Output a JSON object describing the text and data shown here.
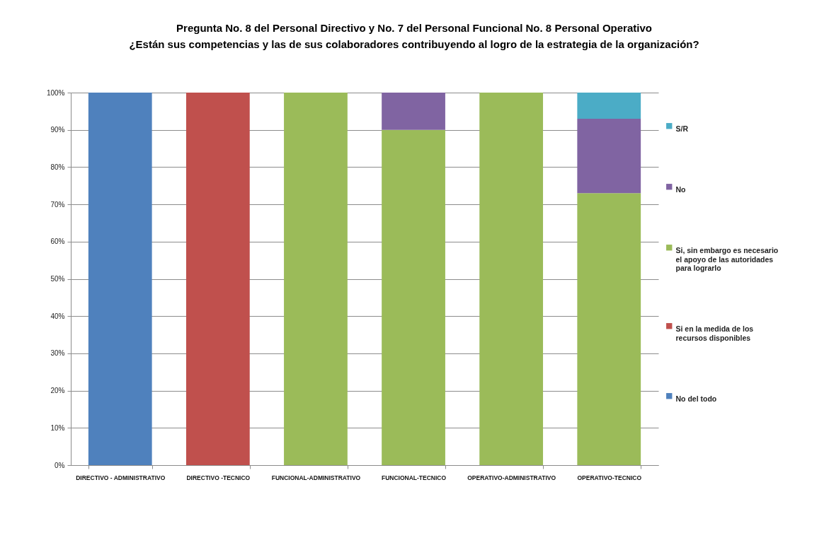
{
  "chart_data": {
    "type": "bar",
    "stacked": true,
    "title": "Pregunta No. 8 del Personal Directivo y No. 7 del Personal Funcional No. 8 Personal Operativo",
    "subtitle": "¿Están sus competencias y las de sus colaboradores contribuyendo al logro de la estrategia de la organización?",
    "categories": [
      "DIRECTIVO - ADMINISTRATIVO",
      "DIRECTIVO -TECNICO",
      "FUNCIONAL-ADMINISTRATIVO",
      "FUNCIONAL-TECNICO",
      "OPERATIVO-ADMINISTRATIVO",
      "OPERATIVO-TECNICO"
    ],
    "series": [
      {
        "name": "No del todo",
        "color": "#4f81bd",
        "values": [
          100,
          null,
          null,
          null,
          null,
          null
        ]
      },
      {
        "name": "Si en la medida de los recursos disponibles",
        "color": "#c0504d",
        "values": [
          null,
          100,
          null,
          null,
          null,
          null
        ]
      },
      {
        "name": "Si, sin embargo es necesario el apoyo de las autoridades para lograrlo",
        "color": "#9bbb59",
        "values": [
          null,
          null,
          100,
          90,
          100,
          73
        ]
      },
      {
        "name": "No",
        "color": "#8064a2",
        "values": [
          null,
          null,
          null,
          10,
          null,
          20
        ]
      },
      {
        "name": "S/R",
        "color": "#4bacc6",
        "values": [
          null,
          null,
          null,
          null,
          null,
          7
        ]
      }
    ],
    "ylim": [
      0,
      100
    ],
    "yticks": [
      {
        "value": 0,
        "label": "0%"
      },
      {
        "value": 10,
        "label": "10%"
      },
      {
        "value": 20,
        "label": "20%"
      },
      {
        "value": 30,
        "label": "30%"
      },
      {
        "value": 40,
        "label": "40%"
      },
      {
        "value": 50,
        "label": "50%"
      },
      {
        "value": 60,
        "label": "60%"
      },
      {
        "value": 70,
        "label": "70%"
      },
      {
        "value": 80,
        "label": "80%"
      },
      {
        "value": 90,
        "label": "90%"
      },
      {
        "value": 100,
        "label": "100%"
      }
    ],
    "grid": "y",
    "legend": "right"
  }
}
